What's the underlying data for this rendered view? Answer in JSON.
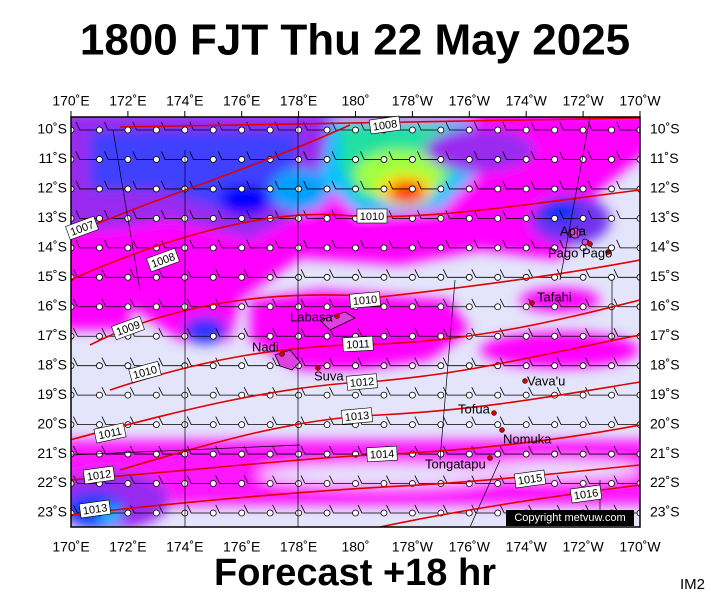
{
  "header": {
    "title": "1800 FJT Thu 22 May 2025"
  },
  "footer": {
    "title": "Forecast +18 hr",
    "code": "IM2"
  },
  "map": {
    "lon_labels": [
      "170˚E",
      "172˚E",
      "174˚E",
      "176˚E",
      "178˚E",
      "180˚",
      "178˚W",
      "176˚W",
      "174˚W",
      "172˚W",
      "170˚W"
    ],
    "lat_labels": [
      "10˚S",
      "11˚S",
      "12˚S",
      "13˚S",
      "14˚S",
      "15˚S",
      "16˚S",
      "17˚S",
      "18˚S",
      "19˚S",
      "20˚S",
      "21˚S",
      "22˚S",
      "23˚S"
    ],
    "places": [
      "Apia",
      "Pago Pago",
      "Tafahi",
      "Labasa",
      "Nadi",
      "Suva",
      "Vava'u",
      "Tofua",
      "Nomuka",
      "Tongatapu"
    ],
    "isobar_labels": [
      "1008",
      "1010",
      "1008",
      "1007",
      "1010",
      "1009",
      "1011",
      "1010",
      "1012",
      "1013",
      "1011",
      "1014",
      "1012",
      "1015",
      "1016",
      "1013"
    ],
    "copyright": "Copyright metvuw.com"
  }
}
